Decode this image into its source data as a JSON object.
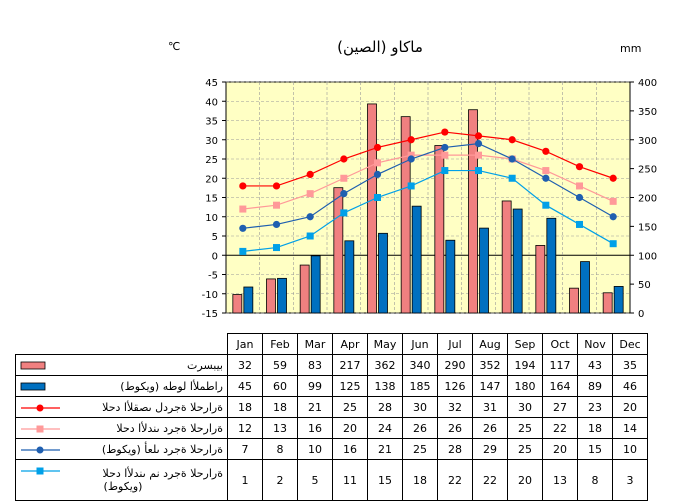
{
  "header": {
    "title": "ماكاو (الصين)",
    "unit_left": "℃",
    "unit_right": "mm"
  },
  "chart_data": {
    "type": "bar",
    "categories": [
      "Jan",
      "Feb",
      "Mar",
      "Apr",
      "May",
      "Jun",
      "Jul",
      "Aug",
      "Sep",
      "Oct",
      "Nov",
      "Dec"
    ],
    "ylim_left": [
      -15,
      45
    ],
    "ylim_right": [
      0,
      400
    ],
    "yticks_left": [
      "45",
      "40",
      "35",
      "30",
      "25",
      "20",
      "15",
      "10",
      "5",
      "0",
      "-5",
      "-10",
      "-15"
    ],
    "yticks_right": [
      "400",
      "350",
      "300",
      "250",
      "200",
      "150",
      "100",
      "50",
      "0"
    ],
    "grid": true,
    "series": [
      {
        "name": "بيبسرت",
        "kind": "bar",
        "axis": "right",
        "color": "#f08080",
        "values": [
          32,
          59,
          83,
          217,
          362,
          340,
          290,
          352,
          194,
          117,
          43,
          35
        ]
      },
      {
        "name": "(ويكوط) راطملأا لوطه",
        "kind": "bar",
        "axis": "right",
        "color": "#0070c0",
        "values": [
          45,
          60,
          99,
          125,
          138,
          185,
          126,
          147,
          180,
          164,
          89,
          46
        ]
      },
      {
        "name": "ةرارحلا ةجردل ىصقلأا دحلا",
        "kind": "line",
        "axis": "left",
        "color": "#ff0000",
        "marker": "circle",
        "values": [
          18,
          18,
          21,
          25,
          28,
          30,
          32,
          31,
          30,
          27,
          23,
          20
        ]
      },
      {
        "name": "ةرارحلا ةجرد ىندلأا دحلا",
        "kind": "line",
        "axis": "left",
        "color": "#ff9999",
        "marker": "square",
        "values": [
          12,
          13,
          16,
          20,
          24,
          26,
          26,
          26,
          25,
          22,
          18,
          14
        ]
      },
      {
        "name": "(ويكوط) ةرارحلا ةجرد ىلعأ",
        "kind": "line",
        "axis": "left",
        "color": "#1f5fb0",
        "marker": "circle",
        "values": [
          7,
          8,
          10,
          16,
          21,
          25,
          28,
          29,
          25,
          20,
          15,
          10
        ]
      },
      {
        "name": "ةرارحلا ةجرد نم ىندلأا دحلا (ويكوط)",
        "kind": "line",
        "axis": "left",
        "color": "#00a0e8",
        "marker": "square",
        "values": [
          1,
          2,
          5,
          11,
          15,
          18,
          22,
          22,
          20,
          13,
          8,
          3
        ]
      }
    ]
  },
  "table": {
    "rows": [
      {
        "label": "بيبسرت",
        "values": [
          "32",
          "59",
          "83",
          "217",
          "362",
          "340",
          "290",
          "352",
          "194",
          "117",
          "43",
          "35"
        ]
      },
      {
        "label": "(ويكوط) راطملأا لوطه",
        "values": [
          "45",
          "60",
          "99",
          "125",
          "138",
          "185",
          "126",
          "147",
          "180",
          "164",
          "89",
          "46"
        ]
      },
      {
        "label": "ةرارحلا ةجردل ىصقلأا دحلا",
        "values": [
          "18",
          "18",
          "21",
          "25",
          "28",
          "30",
          "32",
          "31",
          "30",
          "27",
          "23",
          "20"
        ]
      },
      {
        "label": "ةرارحلا ةجرد ىندلأا دحلا",
        "values": [
          "12",
          "13",
          "16",
          "20",
          "24",
          "26",
          "26",
          "26",
          "25",
          "22",
          "18",
          "14"
        ]
      },
      {
        "label": "(ويكوط) ةرارحلا ةجرد ىلعأ",
        "values": [
          "7",
          "8",
          "10",
          "16",
          "21",
          "25",
          "28",
          "29",
          "25",
          "20",
          "15",
          "10"
        ]
      },
      {
        "label": "ةرارحلا ةجرد نم ىندلأا دحلا",
        "label2": "(ويكوط)",
        "values": [
          "1",
          "2",
          "5",
          "11",
          "15",
          "18",
          "22",
          "22",
          "20",
          "13",
          "8",
          "3"
        ]
      }
    ]
  }
}
